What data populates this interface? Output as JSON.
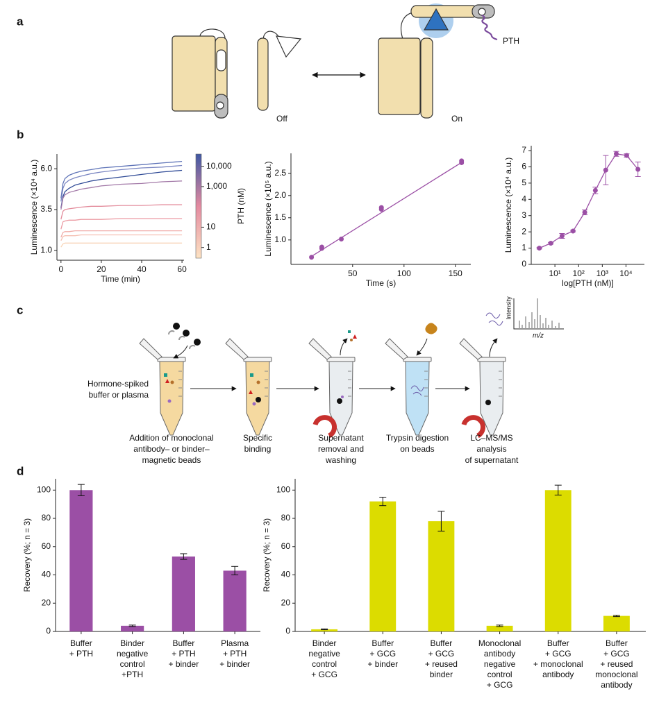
{
  "panel_labels": [
    "a",
    "b",
    "c",
    "d"
  ],
  "panel_a": {
    "off": "Off",
    "on": "On",
    "hormone": "PTH"
  },
  "panel_c": {
    "input": [
      "Hormone-spiked",
      "buffer or plasma"
    ],
    "steps": [
      [
        "Addition of monoclonal",
        "antibody– or binder–",
        "magnetic beads"
      ],
      [
        "Specific",
        "binding"
      ],
      [
        "Supernatant",
        "removal and",
        "washing"
      ],
      [
        "Trypsin digestion",
        "on beads"
      ],
      [
        "LC–MS/MS",
        "analysis",
        "of supernatant"
      ]
    ],
    "ms_ylabel": "Intensity",
    "ms_xlabel": "m/z"
  },
  "chart_data": [
    {
      "type": "line",
      "xlabel": "Time (min)",
      "ylabel": "Luminescence (×10⁴ a.u.)",
      "x": [
        0,
        1,
        2,
        4,
        7,
        10,
        15,
        20,
        30,
        40,
        50,
        60
      ],
      "xlim": [
        -2,
        61
      ],
      "xticks": [
        0,
        20,
        40,
        60
      ],
      "ylim": [
        0.4,
        6.9
      ],
      "yticks": [
        {
          "value": 1,
          "label": "1.0"
        },
        {
          "value": 3.5,
          "label": "3.5"
        },
        {
          "value": 6,
          "label": "6.0"
        }
      ],
      "series": [
        {
          "color": "#5f74b8",
          "values": [
            4.2,
            5.1,
            5.4,
            5.6,
            5.75,
            5.85,
            5.95,
            6.05,
            6.15,
            6.25,
            6.35,
            6.45
          ]
        },
        {
          "color": "#7a86c2",
          "values": [
            4.0,
            4.8,
            5.1,
            5.3,
            5.45,
            5.55,
            5.7,
            5.8,
            5.95,
            6.05,
            6.1,
            6.2
          ]
        },
        {
          "color": "#2f4a96",
          "values": [
            3.6,
            4.3,
            4.6,
            4.8,
            5.0,
            5.1,
            5.25,
            5.35,
            5.5,
            5.65,
            5.8,
            5.9
          ]
        },
        {
          "color": "#a37aa8",
          "values": [
            3.5,
            4.2,
            4.4,
            4.55,
            4.65,
            4.75,
            4.85,
            4.95,
            5.05,
            5.1,
            5.2,
            5.25
          ]
        },
        {
          "color": "#e38c9c",
          "values": [
            2.9,
            3.4,
            3.5,
            3.55,
            3.6,
            3.65,
            3.7,
            3.7,
            3.75,
            3.75,
            3.8,
            3.8
          ]
        },
        {
          "color": "#ec9ba3",
          "values": [
            2.3,
            2.75,
            2.8,
            2.85,
            2.85,
            2.9,
            2.9,
            2.9,
            2.95,
            2.95,
            2.95,
            2.95
          ]
        },
        {
          "color": "#f0aca8",
          "values": [
            1.8,
            2.1,
            2.15,
            2.15,
            2.2,
            2.2,
            2.2,
            2.2,
            2.2,
            2.2,
            2.2,
            2.2
          ]
        },
        {
          "color": "#f5c0b2",
          "values": [
            1.6,
            1.85,
            1.9,
            1.9,
            1.9,
            1.95,
            1.95,
            1.95,
            1.95,
            1.95,
            1.95,
            1.95
          ]
        },
        {
          "color": "#f8d5b8",
          "values": [
            1.2,
            1.4,
            1.45,
            1.45,
            1.45,
            1.45,
            1.45,
            1.45,
            1.45,
            1.45,
            1.45,
            1.45
          ]
        }
      ],
      "colorbar": {
        "title": "PTH (nM)",
        "log": true,
        "lim": [
          0.3,
          40000
        ],
        "colors": [
          "#fde3c3",
          "#e48aa0",
          "#3f57a3"
        ],
        "ticks": [
          1,
          10,
          {
            "value": 1000,
            "label": "1,000"
          },
          {
            "value": 10000,
            "label": "10,000"
          }
        ]
      }
    },
    {
      "type": "scatter",
      "xlabel": "Time (s)",
      "ylabel": "Luminescence (×10⁵ a.u.)",
      "x": [
        10,
        20,
        20,
        39,
        78,
        78,
        156,
        156
      ],
      "values": [
        0.61,
        0.81,
        0.84,
        1.02,
        1.69,
        1.73,
        2.74,
        2.78
      ],
      "color": "#9b4fa5",
      "fit": {
        "x": [
          10,
          157
        ],
        "values": [
          0.63,
          2.76
        ]
      },
      "xlim": [
        -10,
        165
      ],
      "xticks": [
        50,
        100,
        150
      ],
      "ylim": [
        0.45,
        2.95
      ],
      "yticks": [
        {
          "value": 1,
          "label": "1.0"
        },
        {
          "value": 1.5,
          "label": "1.5"
        },
        {
          "value": 2,
          "label": "2.0"
        },
        {
          "value": 2.5,
          "label": "2.5"
        }
      ]
    },
    {
      "type": "errorline",
      "xlabel": "log[PTH (nM)]",
      "ylabel": "Luminescence (×10⁴ a.u.)",
      "xlog": true,
      "color": "#9b4fa5",
      "x": [
        2.2,
        6.7,
        20,
        58,
        182,
        510,
        1400,
        3900,
        10700,
        32000
      ],
      "values": [
        1.0,
        1.3,
        1.75,
        2.05,
        3.2,
        4.55,
        5.8,
        6.8,
        6.7,
        5.85
      ],
      "errors": [
        0.05,
        0.05,
        0.15,
        0.05,
        0.15,
        0.2,
        0.9,
        0.15,
        0.1,
        0.45
      ],
      "xlim": [
        1,
        60000
      ],
      "xticks": [
        {
          "value": 10,
          "label": "10¹"
        },
        {
          "value": 100,
          "label": "10²"
        },
        {
          "value": 1000,
          "label": "10³"
        },
        {
          "value": 10000,
          "label": "10⁴"
        }
      ],
      "ylim": [
        0,
        7.3
      ],
      "yticks": [
        0,
        1,
        2,
        3,
        4,
        5,
        6,
        7
      ]
    },
    {
      "type": "bar",
      "ylabel": "Recovery (%; n = 3)",
      "color": "#9b4fa5",
      "categories": [
        [
          "Buffer",
          "+ PTH"
        ],
        [
          "Binder",
          "negative",
          "control",
          "+PTH"
        ],
        [
          "Buffer",
          "+ PTH",
          "+ binder"
        ],
        [
          "Plasma",
          "+ PTH",
          "+ binder"
        ]
      ],
      "values": [
        100,
        4,
        53,
        43
      ],
      "errors": [
        4,
        0.5,
        2,
        3
      ],
      "ylim": [
        0,
        108
      ],
      "yticks": [
        0,
        20,
        40,
        60,
        80,
        100
      ]
    },
    {
      "type": "bar",
      "ylabel": "Recovery (%; n = 3)",
      "color": "#dcdc00",
      "categories": [
        [
          "Binder",
          "negative",
          "control",
          "+ GCG"
        ],
        [
          "Buffer",
          "+ GCG",
          "+ binder"
        ],
        [
          "Buffer",
          "+ GCG",
          "+ reused",
          "binder"
        ],
        [
          "Monoclonal",
          "antibody",
          "negative",
          "control",
          "+ GCG"
        ],
        [
          "Buffer",
          "+ GCG",
          "+ monoclonal",
          "antibody"
        ],
        [
          "Buffer",
          "+ GCG",
          "+ reused",
          "monoclonal",
          "antibody"
        ]
      ],
      "values": [
        1.5,
        92,
        78,
        4,
        100,
        11
      ],
      "errors": [
        0.3,
        3,
        7,
        0.5,
        3.5,
        0.5
      ],
      "ylim": [
        0,
        108
      ],
      "yticks": [
        0,
        20,
        40,
        60,
        80,
        100
      ]
    }
  ]
}
